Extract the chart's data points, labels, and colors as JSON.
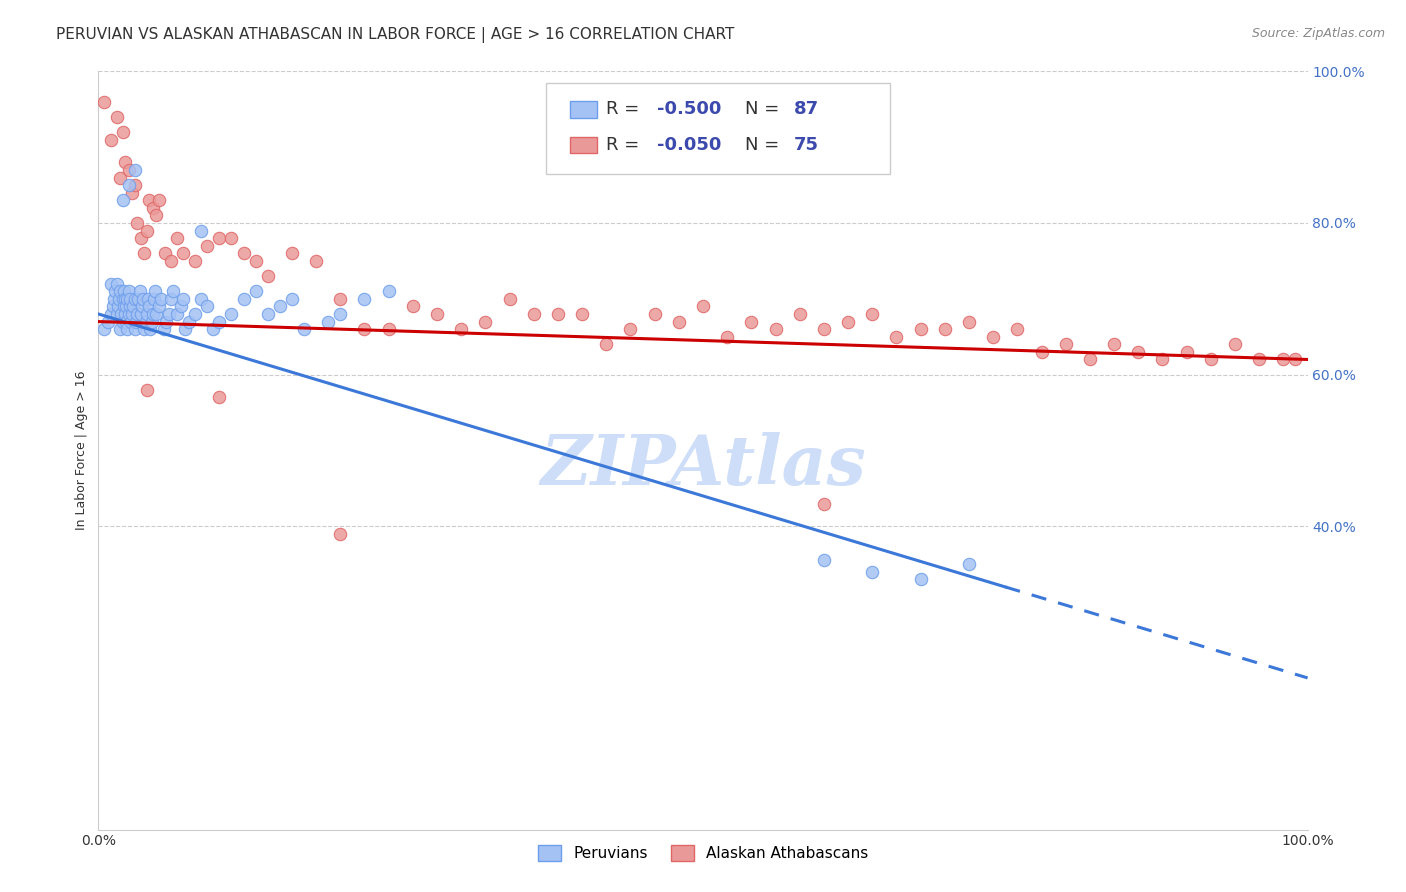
{
  "title": "PERUVIAN VS ALASKAN ATHABASCAN IN LABOR FORCE | AGE > 16 CORRELATION CHART",
  "source": "Source: ZipAtlas.com",
  "ylabel": "In Labor Force | Age > 16",
  "legend_blue_r": "R = -0.500",
  "legend_blue_n": "N = 87",
  "legend_pink_r": "R = -0.050",
  "legend_pink_n": "N = 75",
  "legend_label_blue": "Peruvians",
  "legend_label_pink": "Alaskan Athabascans",
  "blue_color": "#a4c2f4",
  "blue_edge_color": "#6d9eeb",
  "pink_color": "#ea9999",
  "pink_edge_color": "#e06666",
  "blue_line_color": "#3c78d8",
  "pink_line_color": "#cc0000",
  "watermark": "ZIPAtlas",
  "watermark_color": "#c9daf8",
  "background_color": "#ffffff",
  "grid_color": "#cccccc",
  "blue_scatter_x": [
    0.005,
    0.008,
    0.01,
    0.01,
    0.012,
    0.013,
    0.014,
    0.015,
    0.015,
    0.016,
    0.017,
    0.018,
    0.018,
    0.019,
    0.02,
    0.02,
    0.021,
    0.021,
    0.022,
    0.022,
    0.023,
    0.023,
    0.024,
    0.024,
    0.025,
    0.025,
    0.026,
    0.026,
    0.027,
    0.028,
    0.029,
    0.03,
    0.03,
    0.031,
    0.032,
    0.033,
    0.034,
    0.035,
    0.036,
    0.037,
    0.038,
    0.039,
    0.04,
    0.041,
    0.042,
    0.043,
    0.044,
    0.045,
    0.046,
    0.047,
    0.048,
    0.05,
    0.052,
    0.054,
    0.056,
    0.058,
    0.06,
    0.062,
    0.065,
    0.068,
    0.07,
    0.072,
    0.075,
    0.08,
    0.085,
    0.09,
    0.095,
    0.1,
    0.11,
    0.12,
    0.13,
    0.14,
    0.15,
    0.16,
    0.17,
    0.19,
    0.2,
    0.22,
    0.24,
    0.02,
    0.025,
    0.03,
    0.085,
    0.6,
    0.64,
    0.68,
    0.72
  ],
  "blue_scatter_y": [
    0.66,
    0.67,
    0.68,
    0.72,
    0.69,
    0.7,
    0.71,
    0.68,
    0.72,
    0.69,
    0.7,
    0.71,
    0.66,
    0.68,
    0.67,
    0.7,
    0.69,
    0.71,
    0.68,
    0.7,
    0.67,
    0.69,
    0.7,
    0.66,
    0.68,
    0.71,
    0.69,
    0.7,
    0.67,
    0.68,
    0.69,
    0.7,
    0.66,
    0.67,
    0.68,
    0.7,
    0.71,
    0.68,
    0.69,
    0.7,
    0.66,
    0.67,
    0.68,
    0.7,
    0.69,
    0.66,
    0.67,
    0.68,
    0.7,
    0.71,
    0.68,
    0.69,
    0.7,
    0.66,
    0.67,
    0.68,
    0.7,
    0.71,
    0.68,
    0.69,
    0.7,
    0.66,
    0.67,
    0.68,
    0.7,
    0.69,
    0.66,
    0.67,
    0.68,
    0.7,
    0.71,
    0.68,
    0.69,
    0.7,
    0.66,
    0.67,
    0.68,
    0.7,
    0.71,
    0.83,
    0.85,
    0.87,
    0.79,
    0.355,
    0.34,
    0.33,
    0.35
  ],
  "pink_scatter_x": [
    0.005,
    0.01,
    0.015,
    0.018,
    0.02,
    0.022,
    0.025,
    0.028,
    0.03,
    0.032,
    0.035,
    0.038,
    0.04,
    0.042,
    0.045,
    0.048,
    0.05,
    0.055,
    0.06,
    0.065,
    0.07,
    0.08,
    0.09,
    0.1,
    0.11,
    0.12,
    0.13,
    0.14,
    0.16,
    0.18,
    0.2,
    0.22,
    0.24,
    0.26,
    0.28,
    0.3,
    0.32,
    0.34,
    0.36,
    0.38,
    0.4,
    0.42,
    0.44,
    0.46,
    0.48,
    0.5,
    0.52,
    0.54,
    0.56,
    0.58,
    0.6,
    0.62,
    0.64,
    0.66,
    0.68,
    0.7,
    0.72,
    0.74,
    0.76,
    0.78,
    0.8,
    0.82,
    0.84,
    0.86,
    0.88,
    0.9,
    0.92,
    0.94,
    0.96,
    0.98,
    0.99,
    0.04,
    0.1,
    0.2,
    0.6
  ],
  "pink_scatter_y": [
    0.96,
    0.91,
    0.94,
    0.86,
    0.92,
    0.88,
    0.87,
    0.84,
    0.85,
    0.8,
    0.78,
    0.76,
    0.79,
    0.83,
    0.82,
    0.81,
    0.83,
    0.76,
    0.75,
    0.78,
    0.76,
    0.75,
    0.77,
    0.78,
    0.78,
    0.76,
    0.75,
    0.73,
    0.76,
    0.75,
    0.7,
    0.66,
    0.66,
    0.69,
    0.68,
    0.66,
    0.67,
    0.7,
    0.68,
    0.68,
    0.68,
    0.64,
    0.66,
    0.68,
    0.67,
    0.69,
    0.65,
    0.67,
    0.66,
    0.68,
    0.66,
    0.67,
    0.68,
    0.65,
    0.66,
    0.66,
    0.67,
    0.65,
    0.66,
    0.63,
    0.64,
    0.62,
    0.64,
    0.63,
    0.62,
    0.63,
    0.62,
    0.64,
    0.62,
    0.62,
    0.62,
    0.58,
    0.57,
    0.39,
    0.43
  ],
  "blue_line_x": [
    0.0,
    0.75,
    1.0
  ],
  "blue_line_y": [
    0.68,
    0.32,
    0.2
  ],
  "blue_line_solid_end": 0.75,
  "pink_line_x": [
    0.0,
    1.0
  ],
  "pink_line_y": [
    0.67,
    0.62
  ],
  "xlim": [
    0.0,
    1.0
  ],
  "ylim": [
    0.0,
    1.0
  ],
  "yticks": [
    0.4,
    0.6,
    0.8,
    1.0
  ],
  "ytick_labels": [
    "40.0%",
    "60.0%",
    "80.0%",
    "100.0%"
  ],
  "xtick_labels": [
    "0.0%",
    "100.0%"
  ],
  "title_fontsize": 11,
  "source_fontsize": 9,
  "axis_label_fontsize": 9,
  "tick_fontsize": 10,
  "dot_size": 80,
  "legend_fontsize": 13,
  "legend_r_color": "#3c4aad",
  "legend_n_color": "#1a1a1a"
}
